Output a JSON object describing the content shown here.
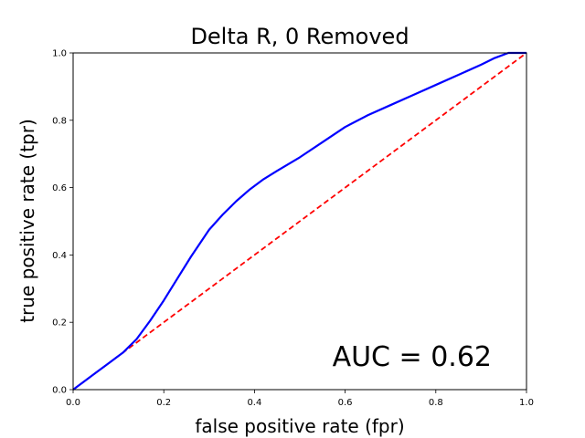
{
  "chart_data": {
    "type": "line",
    "title": "Delta R, 0 Removed",
    "xlabel": "false positive rate (fpr)",
    "ylabel": "true positive rate (tpr)",
    "xlim": [
      0,
      1
    ],
    "ylim": [
      0,
      1
    ],
    "xticks": [
      "0.0",
      "0.2",
      "0.4",
      "0.6",
      "0.8",
      "1.0"
    ],
    "yticks": [
      "0.0",
      "0.2",
      "0.4",
      "0.6",
      "0.8",
      "1.0"
    ],
    "grid": false,
    "annotation": "AUC = 0.62",
    "series": [
      {
        "color": "#0000ff",
        "style": "solid",
        "x": [
          0.0,
          0.02,
          0.05,
          0.08,
          0.11,
          0.14,
          0.17,
          0.2,
          0.23,
          0.26,
          0.3,
          0.33,
          0.36,
          0.39,
          0.42,
          0.45,
          0.5,
          0.55,
          0.6,
          0.65,
          0.7,
          0.75,
          0.8,
          0.85,
          0.9,
          0.93,
          0.96,
          1.0
        ],
        "y": [
          0.0,
          0.02,
          0.05,
          0.08,
          0.11,
          0.15,
          0.205,
          0.265,
          0.33,
          0.395,
          0.475,
          0.52,
          0.56,
          0.595,
          0.625,
          0.65,
          0.69,
          0.735,
          0.78,
          0.815,
          0.845,
          0.875,
          0.905,
          0.935,
          0.965,
          0.985,
          1.0,
          1.0
        ]
      },
      {
        "color": "#ff0000",
        "style": "dashed",
        "x": [
          0,
          1
        ],
        "y": [
          0,
          1
        ]
      }
    ]
  }
}
